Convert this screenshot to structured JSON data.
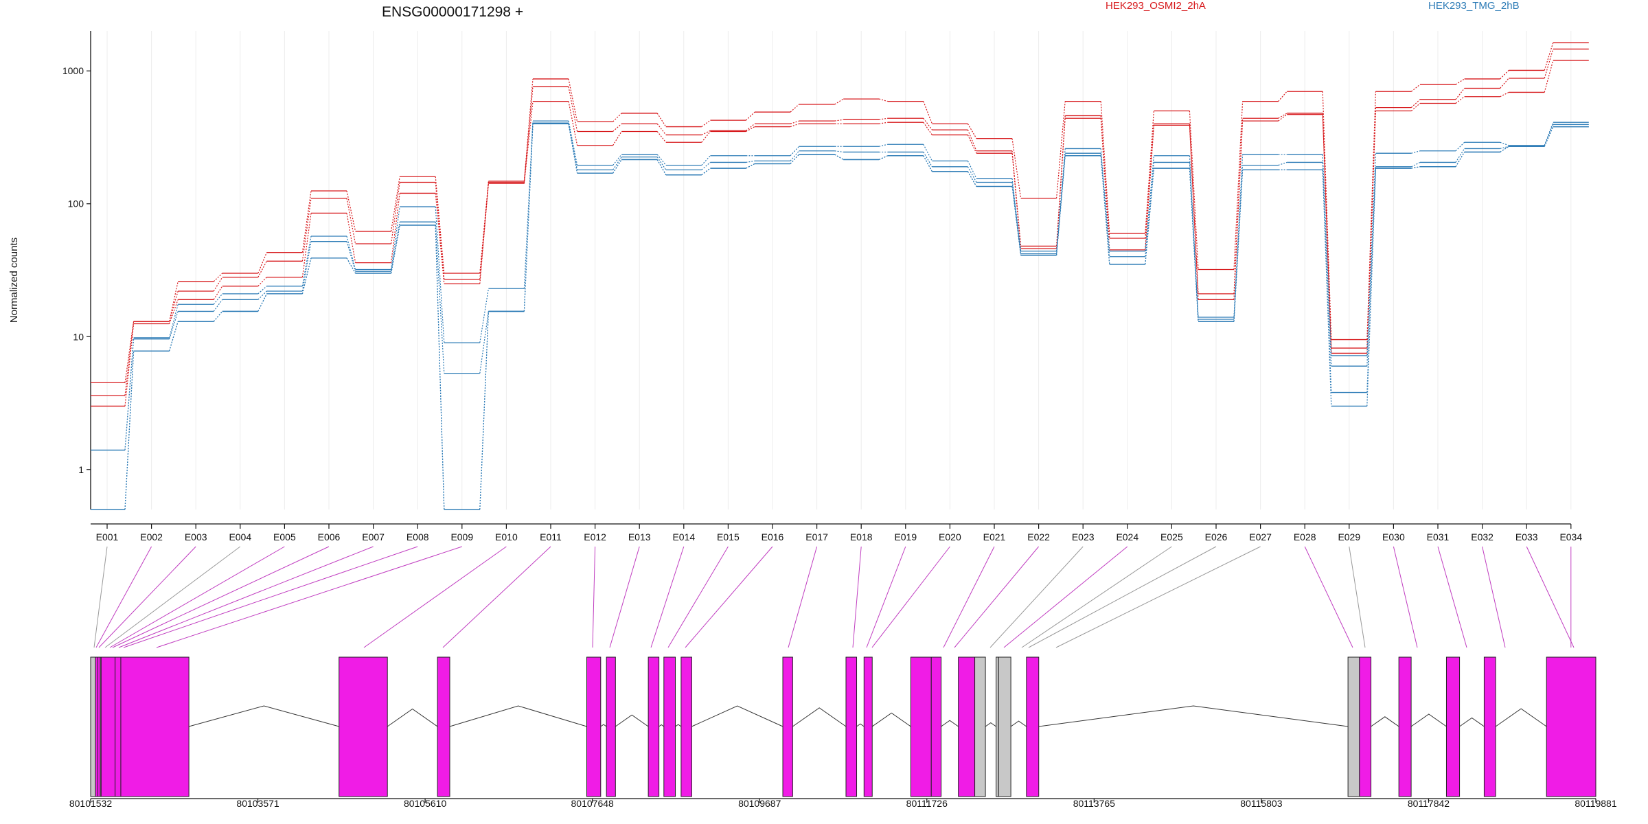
{
  "chart_data": {
    "type": "line",
    "title": "ENSG00000171298 +",
    "ylabel": "Normalized counts",
    "xlabel": "",
    "yscale": "log",
    "ylim": [
      0.5,
      2000
    ],
    "yticks": [
      "1",
      "10",
      "100",
      "1000"
    ],
    "ytick_values": [
      1,
      10,
      100,
      1000
    ],
    "categories": [
      "E001",
      "E002",
      "E003",
      "E004",
      "E005",
      "E006",
      "E007",
      "E008",
      "E009",
      "E010",
      "E011",
      "E012",
      "E013",
      "E014",
      "E015",
      "E016",
      "E017",
      "E018",
      "E019",
      "E020",
      "E021",
      "E022",
      "E023",
      "E024",
      "E025",
      "E026",
      "E027",
      "E028",
      "E029",
      "E030",
      "E031",
      "E032",
      "E033",
      "E034"
    ],
    "legend": [
      {
        "label": "HEK293_OSMI2_2hA",
        "color": "#d7191c"
      },
      {
        "label": "HEK293_TMG_2hB",
        "color": "#2c7bb6"
      }
    ],
    "series": [
      {
        "group": "red",
        "color": "#d7191c",
        "values": [
          4.5,
          13,
          26,
          30,
          43,
          125,
          62,
          160,
          30,
          148,
          870,
          415,
          480,
          380,
          425,
          490,
          560,
          615,
          590,
          400,
          310,
          110,
          590,
          60,
          500,
          32,
          590,
          700,
          9.5,
          700,
          790,
          870,
          1010,
          1630
        ]
      },
      {
        "group": "red",
        "color": "#d7191c",
        "values": [
          3.6,
          13,
          22,
          28,
          37,
          110,
          50,
          145,
          27,
          145,
          760,
          350,
          400,
          330,
          355,
          400,
          420,
          430,
          440,
          360,
          250,
          48,
          460,
          55,
          400,
          21,
          440,
          480,
          8.2,
          530,
          610,
          740,
          880,
          1460
        ]
      },
      {
        "group": "red",
        "color": "#d7191c",
        "values": [
          3.0,
          12.5,
          19,
          24,
          28,
          85,
          36,
          120,
          25,
          142,
          590,
          275,
          350,
          290,
          350,
          380,
          400,
          400,
          410,
          330,
          240,
          46,
          440,
          45,
          390,
          19,
          420,
          470,
          7.5,
          500,
          570,
          640,
          690,
          1200
        ]
      },
      {
        "group": "blue",
        "color": "#2c7bb6",
        "values": [
          1.4,
          9.8,
          17.5,
          21,
          24,
          57,
          32,
          95,
          9,
          23,
          420,
          195,
          235,
          195,
          230,
          230,
          270,
          270,
          280,
          210,
          155,
          44,
          260,
          44,
          230,
          14,
          235,
          235,
          7.2,
          240,
          250,
          290,
          275,
          410
        ]
      },
      {
        "group": "blue",
        "color": "#2c7bb6",
        "values": [
          1.4,
          9.6,
          15.5,
          19,
          22,
          52,
          31,
          73,
          5.3,
          15.5,
          405,
          180,
          225,
          180,
          205,
          210,
          250,
          245,
          245,
          190,
          145,
          42,
          240,
          40,
          205,
          13.5,
          195,
          205,
          6.0,
          190,
          205,
          260,
          270,
          395
        ]
      },
      {
        "group": "blue",
        "color": "#2c7bb6",
        "values": [
          0.5,
          7.8,
          13,
          15.5,
          21,
          39,
          30,
          69,
          0.5,
          15.5,
          400,
          170,
          215,
          165,
          185,
          200,
          235,
          215,
          230,
          175,
          135,
          41,
          230,
          35,
          185,
          13,
          180,
          180,
          3.8,
          185,
          190,
          245,
          270,
          380
        ]
      },
      {
        "group": "blue",
        "color": "#2c7bb6",
        "values": [
          0.5,
          7.8,
          13,
          15.5,
          21,
          39,
          30,
          69,
          0.5,
          15.5,
          400,
          170,
          215,
          165,
          185,
          200,
          235,
          215,
          230,
          175,
          135,
          41,
          230,
          35,
          185,
          13,
          180,
          180,
          3.0,
          185,
          190,
          245,
          270,
          380
        ]
      }
    ],
    "gene_model": {
      "coordinate_labels": [
        "80101532",
        "80103571",
        "80105610",
        "80107648",
        "80109687",
        "80111726",
        "80113765",
        "80115803",
        "80117842",
        "80119881"
      ],
      "exon_status": [
        "gray",
        "magenta",
        "magenta",
        "gray",
        "magenta",
        "magenta",
        "magenta",
        "magenta",
        "magenta",
        "magenta",
        "magenta",
        "magenta",
        "magenta",
        "magenta",
        "magenta",
        "magenta",
        "magenta",
        "magenta",
        "magenta",
        "magenta",
        "magenta",
        "magenta",
        "gray",
        "magenta",
        "gray",
        "gray",
        "gray",
        "magenta",
        "gray",
        "magenta",
        "magenta",
        "magenta",
        "magenta",
        "magenta"
      ],
      "exons": [
        {
          "start": 80101532,
          "end": 80101590,
          "color": "gray"
        },
        {
          "start": 80101590,
          "end": 80101620,
          "color": "magenta"
        },
        {
          "start": 80101620,
          "end": 80101650,
          "color": "magenta"
        },
        {
          "start": 80101650,
          "end": 80101660,
          "color": "gray"
        },
        {
          "start": 80101660,
          "end": 80101830,
          "color": "magenta"
        },
        {
          "start": 80101830,
          "end": 80101900,
          "color": "magenta"
        },
        {
          "start": 80101900,
          "end": 80102730,
          "color": "magenta"
        },
        {
          "start": 80104560,
          "end": 80105150,
          "color": "magenta"
        },
        {
          "start": 80105760,
          "end": 80105910,
          "color": "magenta"
        },
        {
          "start": 80107580,
          "end": 80107750,
          "color": "magenta"
        },
        {
          "start": "80107820",
          "end": 80107930,
          "color": "magenta"
        },
        {
          "start": 80108330,
          "end": 80108460,
          "color": "magenta"
        },
        {
          "start": 80108520,
          "end": 80108660,
          "color": "magenta"
        },
        {
          "start": 80108730,
          "end": 80108860,
          "color": "magenta"
        },
        {
          "start": 80109970,
          "end": 80110090,
          "color": "magenta"
        },
        {
          "start": 80110740,
          "end": 80110870,
          "color": "magenta"
        },
        {
          "start": 80110960,
          "end": 80111060,
          "color": "magenta"
        },
        {
          "start": 80111530,
          "end": 80111780,
          "color": "magenta"
        },
        {
          "start": 80111780,
          "end": 80111900,
          "color": "magenta"
        },
        {
          "start": 80112110,
          "end": 80112310,
          "color": "magenta"
        },
        {
          "start": 80112310,
          "end": 80112440,
          "color": "gray"
        },
        {
          "start": 80112570,
          "end": 80112600,
          "color": "gray"
        },
        {
          "start": 80112600,
          "end": 80112750,
          "color": "gray"
        },
        {
          "start": "80112940",
          "end": 80113090,
          "color": "magenta"
        },
        {
          "start": 80116860,
          "end": 80117000,
          "color": "gray"
        },
        {
          "start": 80117000,
          "end": 80117140,
          "color": "magenta"
        },
        {
          "start": 80117480,
          "end": 80117630,
          "color": "magenta"
        },
        {
          "start": 80118060,
          "end": 80118220,
          "color": "magenta"
        },
        {
          "start": 80118520,
          "end": 80118660,
          "color": "magenta"
        },
        {
          "start": 80119280,
          "end": 80119881,
          "color": "magenta"
        }
      ]
    }
  }
}
